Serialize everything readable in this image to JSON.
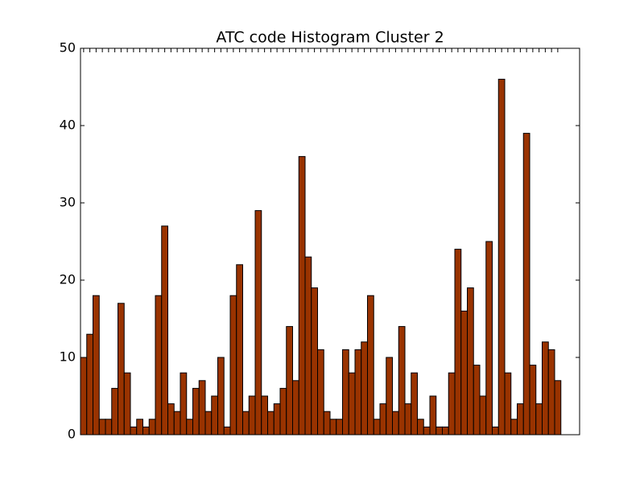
{
  "chart_data": {
    "type": "bar",
    "title": "ATC code Histogram Cluster 2",
    "categories": [
      null,
      null,
      null,
      null,
      null,
      null,
      null,
      null,
      null,
      null,
      null,
      null,
      null,
      null,
      null,
      null,
      null,
      null,
      null,
      null,
      null,
      null,
      null,
      null,
      null,
      null,
      null,
      null,
      null,
      null,
      null,
      null,
      null,
      null,
      null,
      null,
      null,
      null,
      null,
      null,
      null,
      null,
      null,
      null,
      null,
      null,
      null,
      null,
      null,
      null,
      null,
      null,
      null,
      null,
      null,
      null,
      null,
      null,
      null,
      null,
      null,
      null,
      null,
      null,
      null,
      null,
      null,
      null,
      null,
      null,
      null,
      null,
      null,
      null,
      null,
      null,
      null
    ],
    "values": [
      10,
      13,
      18,
      2,
      2,
      6,
      17,
      8,
      1,
      2,
      1,
      2,
      18,
      27,
      4,
      3,
      8,
      2,
      6,
      7,
      3,
      5,
      10,
      1,
      18,
      22,
      3,
      5,
      29,
      5,
      3,
      4,
      6,
      14,
      7,
      36,
      23,
      19,
      11,
      3,
      2,
      2,
      11,
      8,
      11,
      12,
      18,
      2,
      4,
      10,
      3,
      14,
      4,
      8,
      2,
      1,
      5,
      1,
      1,
      8,
      24,
      16,
      19,
      9,
      5,
      25,
      1,
      46,
      8,
      2,
      4,
      39,
      9,
      4,
      12,
      11,
      7
    ],
    "color": "#993300",
    "ylim": [
      0,
      50
    ],
    "yticks": [
      0,
      10,
      20,
      30,
      40,
      50
    ]
  }
}
